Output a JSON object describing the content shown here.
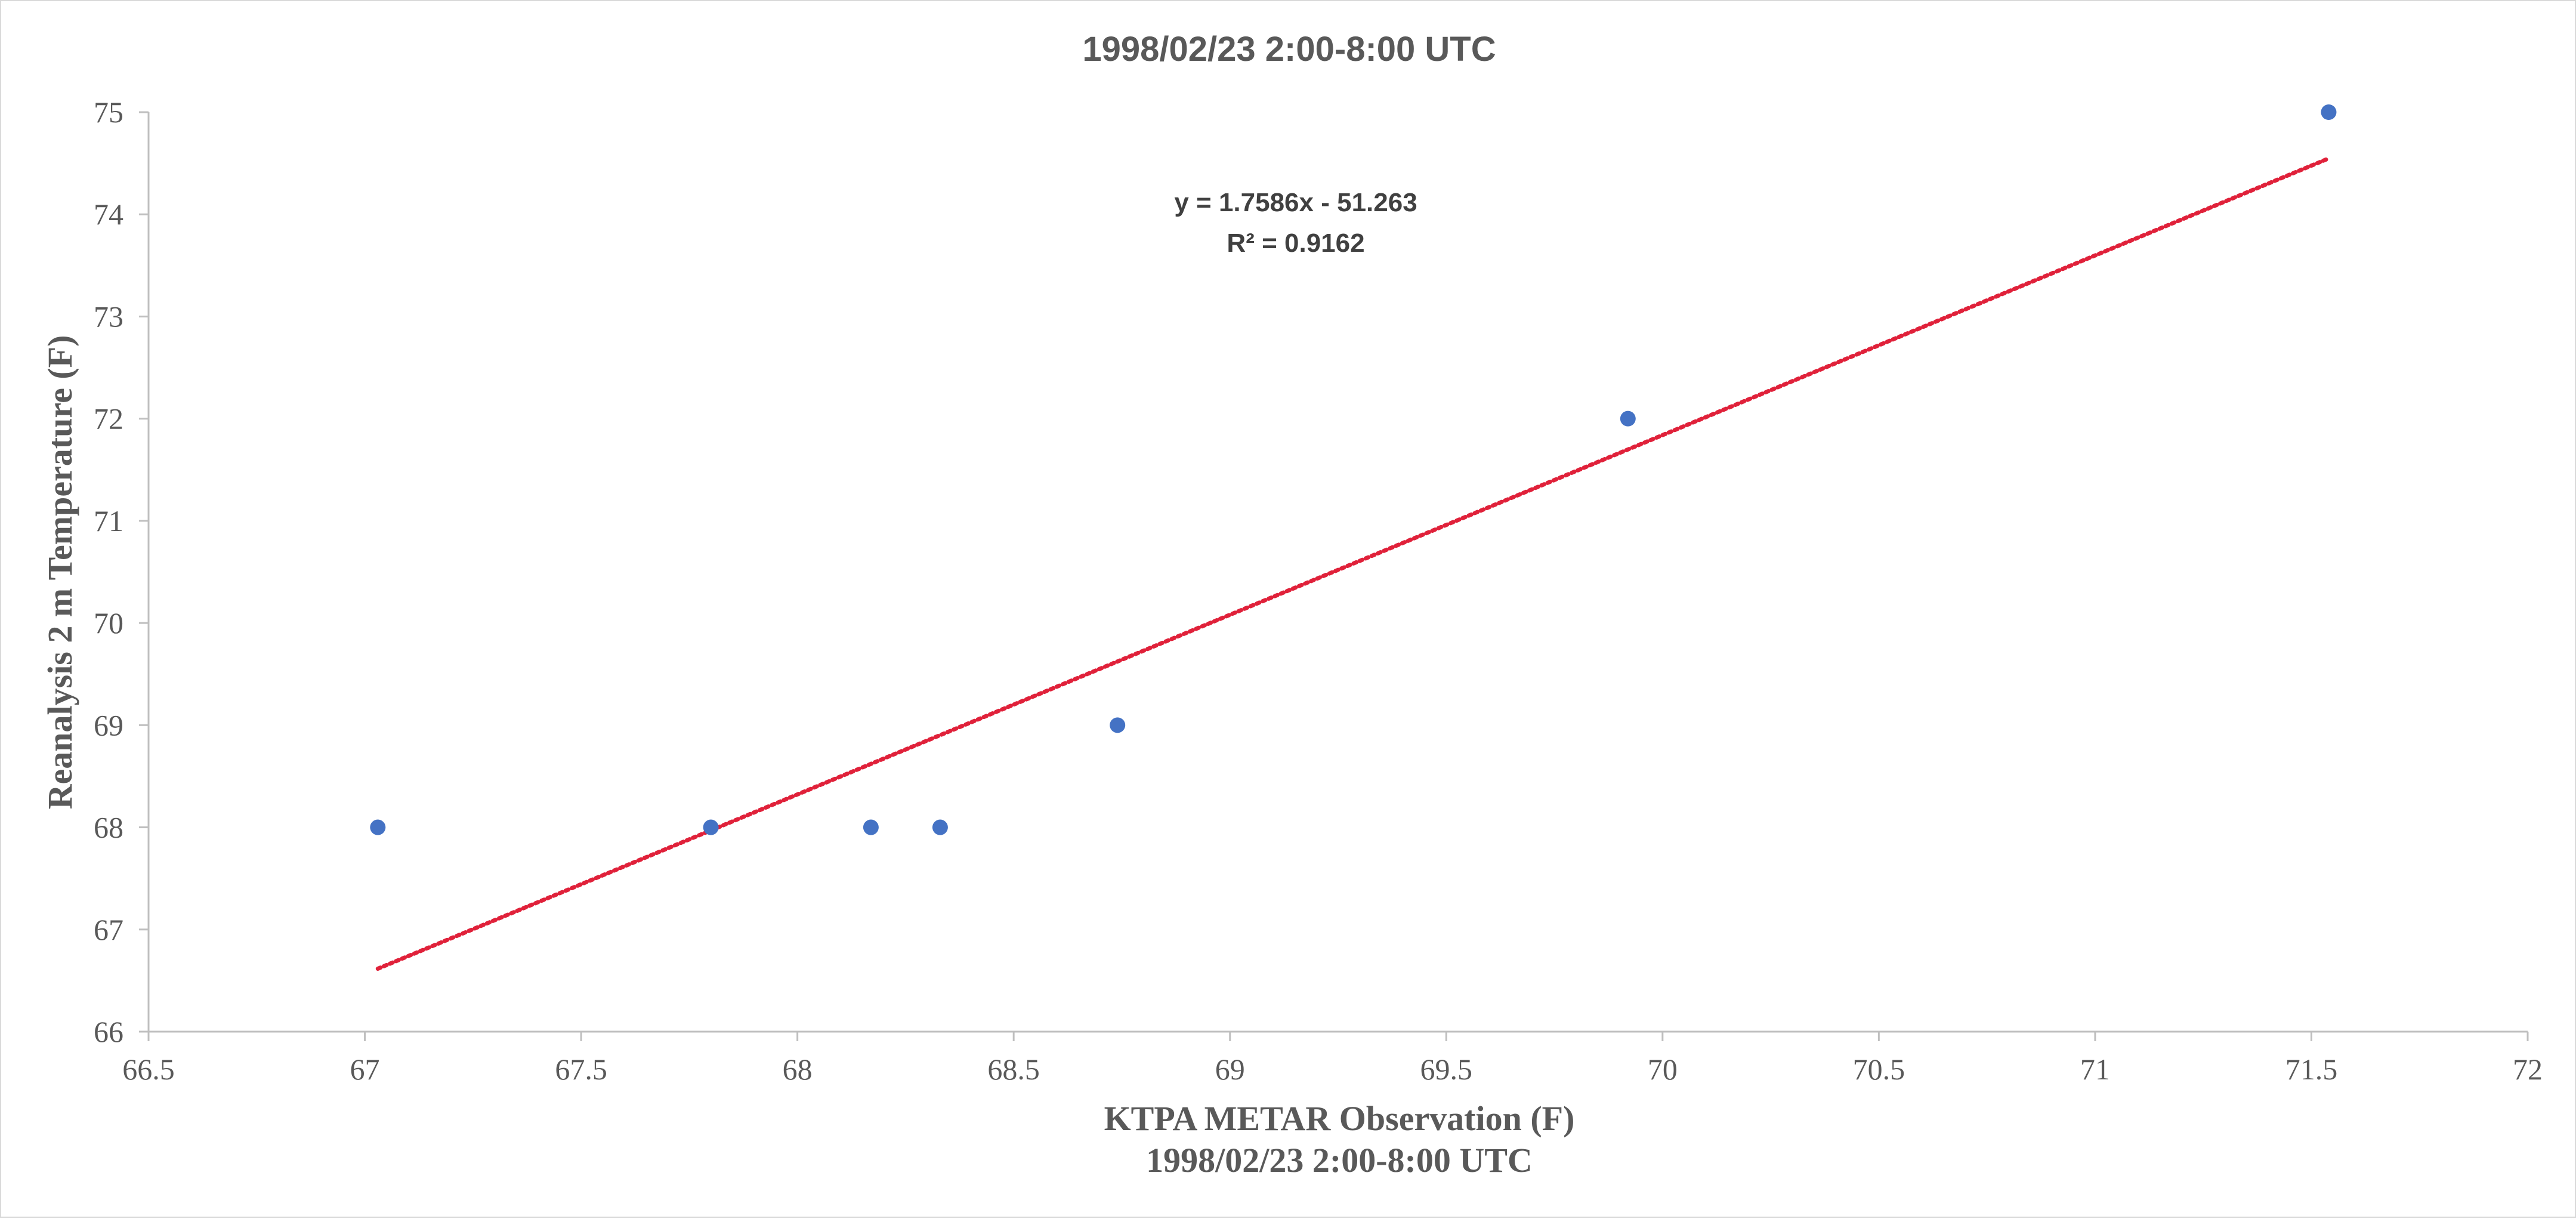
{
  "chart_data": {
    "type": "scatter",
    "title": "1998/02/23 2:00-8:00 UTC",
    "xlabel": "KTPA METAR Observation (F)",
    "xlabel_sub": "1998/02/23 2:00-8:00 UTC",
    "ylabel": "Reanalysis 2 m Temperature  (F)",
    "xlim": [
      66.5,
      72
    ],
    "ylim": [
      66,
      75
    ],
    "x_ticks": [
      "66.5",
      "67",
      "67.5",
      "68",
      "68.5",
      "69",
      "69.5",
      "70",
      "70.5",
      "71",
      "71.5",
      "72"
    ],
    "y_ticks": [
      "66",
      "67",
      "68",
      "69",
      "70",
      "71",
      "72",
      "73",
      "74",
      "75"
    ],
    "grid": false,
    "legend": "none",
    "series": [
      {
        "x": [
          67.03,
          67.8,
          68.17,
          68.33,
          68.74,
          69.92,
          71.54
        ],
        "y": [
          68,
          68,
          68,
          68,
          69,
          72,
          75
        ],
        "color": "#4472c4"
      }
    ],
    "trendline": {
      "slope": 1.7586,
      "intercept": -51.263,
      "x_range": [
        67.03,
        71.54
      ],
      "color": "#e0213a",
      "equation_label": "y = 1.7586x - 51.263",
      "r2_label": "R² = 0.9162"
    }
  }
}
